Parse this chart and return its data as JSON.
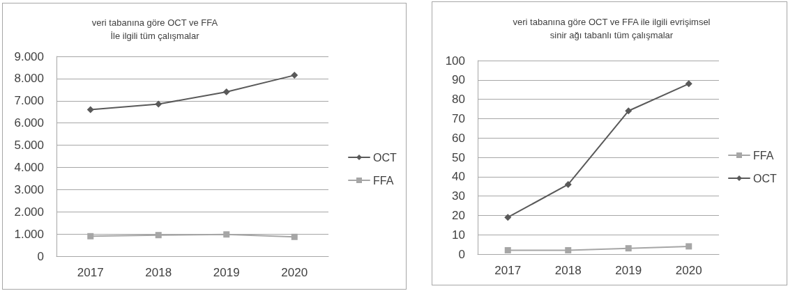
{
  "chart_data": [
    {
      "type": "line",
      "title": "veri tabanına göre OCT ve FFA\nİle ilgili tüm çalışmalar",
      "categories": [
        "2017",
        "2018",
        "2019",
        "2020"
      ],
      "series": [
        {
          "name": "OCT",
          "color": "#595959",
          "marker": "diamond",
          "values": [
            6600,
            6850,
            7400,
            8150
          ]
        },
        {
          "name": "FFA",
          "color": "#a6a6a6",
          "marker": "square",
          "values": [
            900,
            950,
            980,
            870
          ]
        }
      ],
      "ylim": [
        0,
        9000
      ],
      "yticks": [
        0,
        {
          "value": 1000,
          "label": "1.000"
        },
        {
          "value": 2000,
          "label": "2.000"
        },
        {
          "value": 3000,
          "label": "3.000"
        },
        {
          "value": 4000,
          "label": "4.000"
        },
        {
          "value": 5000,
          "label": "5.000"
        },
        {
          "value": 6000,
          "label": "6.000"
        },
        {
          "value": 7000,
          "label": "7.000"
        },
        {
          "value": 8000,
          "label": "8.000"
        },
        {
          "value": 9000,
          "label": "9.000"
        }
      ],
      "grid": "y",
      "legend": "right"
    },
    {
      "type": "line",
      "title": "veri tabanına göre OCT ve FFA ile ilgili evrişimsel\nsinir ağı tabanlı tüm çalışmalar",
      "categories": [
        "2017",
        "2018",
        "2019",
        "2020"
      ],
      "series": [
        {
          "name": "FFA",
          "color": "#a6a6a6",
          "marker": "square",
          "values": [
            2,
            2,
            3,
            4
          ]
        },
        {
          "name": "OCT",
          "color": "#595959",
          "marker": "diamond",
          "values": [
            19,
            36,
            74,
            88
          ]
        }
      ],
      "ylim": [
        0,
        100
      ],
      "yticks": [
        0,
        10,
        20,
        30,
        40,
        50,
        60,
        70,
        80,
        90,
        100
      ],
      "grid": "y",
      "legend": "right"
    }
  ]
}
